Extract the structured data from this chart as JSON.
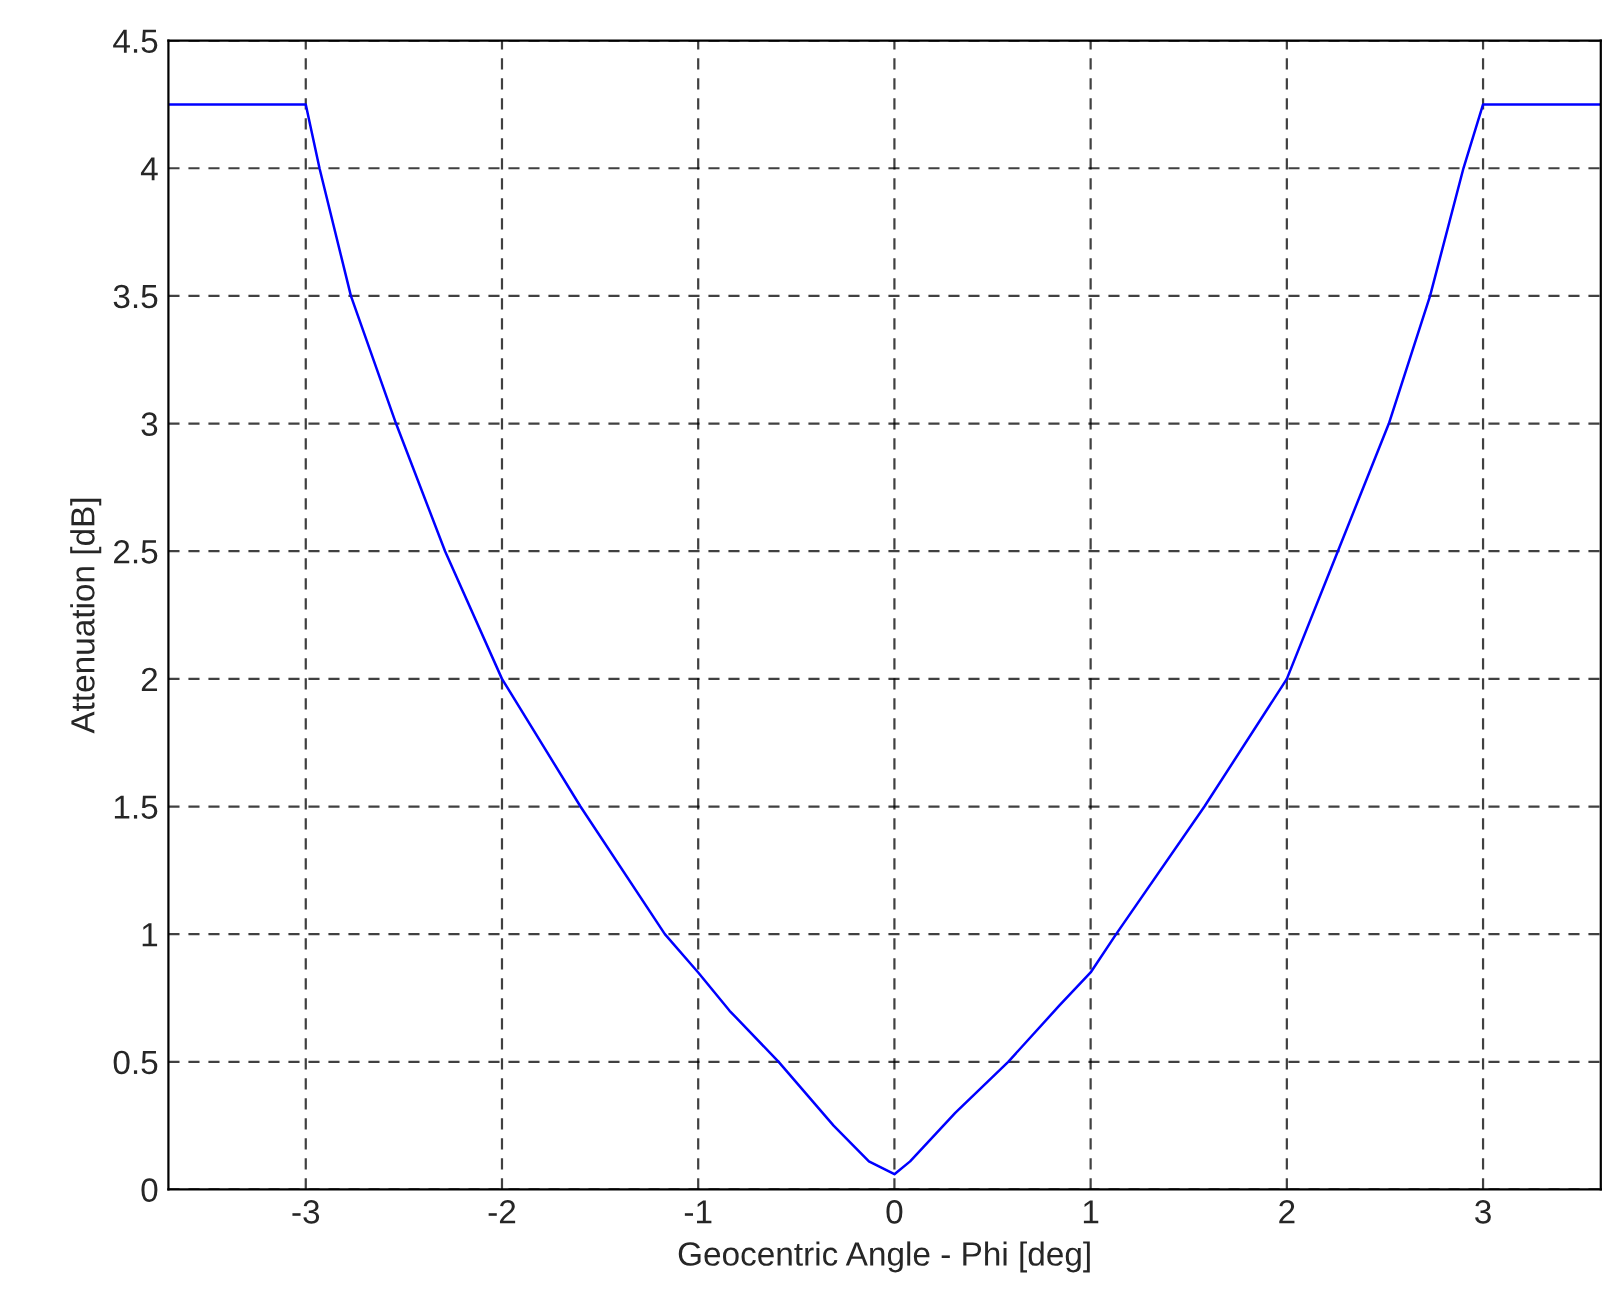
{
  "chart_data": {
    "type": "line",
    "xlabel": "Geocentric Angle - Phi [deg]",
    "ylabel": "Attenuation [dB]",
    "series": [
      {
        "color": "#0000ff",
        "x": [
          -3.7,
          -3.0,
          -2.93,
          -2.77,
          -2.54,
          -2.29,
          -2.0,
          -1.6,
          -1.17,
          -1.0,
          -0.84,
          -0.59,
          -0.31,
          -0.13,
          0.0,
          0.08,
          0.31,
          0.58,
          0.84,
          1.0,
          1.13,
          1.58,
          2.0,
          2.26,
          2.52,
          2.73,
          2.9,
          3.0,
          3.6
        ],
        "values": [
          4.25,
          4.25,
          4.0,
          3.5,
          3.0,
          2.5,
          2.0,
          1.5,
          1.0,
          0.85,
          0.7,
          0.5,
          0.25,
          0.11,
          0.06,
          0.11,
          0.3,
          0.5,
          0.72,
          0.85,
          1.0,
          1.5,
          2.0,
          2.5,
          3.0,
          3.5,
          4.0,
          4.25,
          4.25
        ]
      }
    ],
    "xlim": [
      -3.7,
      3.6
    ],
    "ylim": [
      0,
      4.5
    ],
    "xticks": [
      -3,
      -2,
      -1,
      0,
      1,
      2,
      3
    ],
    "yticks": [
      0,
      0.5,
      1,
      1.5,
      2,
      2.5,
      3,
      3.5,
      4,
      4.5
    ],
    "grid": true,
    "line_style": "solid",
    "marker": "none",
    "legend": false
  }
}
